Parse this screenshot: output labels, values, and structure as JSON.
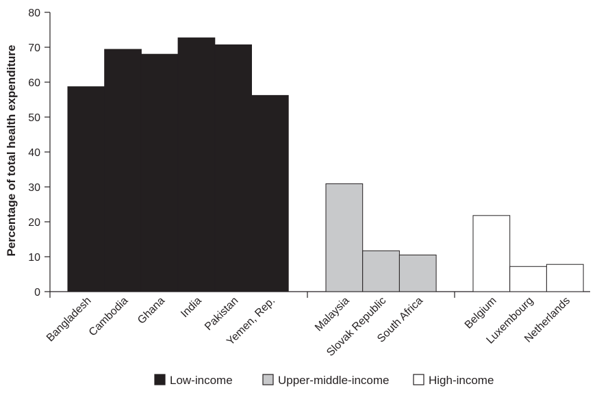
{
  "chart_data": {
    "type": "bar",
    "title": "",
    "xlabel": "",
    "ylabel": "Percentage of total health expenditure",
    "ylim": [
      0,
      80
    ],
    "yticks": [
      0,
      10,
      20,
      30,
      40,
      50,
      60,
      70,
      80
    ],
    "grid": false,
    "legend_position": "bottom",
    "groups": [
      {
        "name": "Low-income",
        "color": "#231f20",
        "categories": [
          "Bangladesh",
          "Cambodia",
          "Ghana",
          "India",
          "Pakistan",
          "Yemen, Rep."
        ],
        "values": [
          58.7,
          69.4,
          68.0,
          72.7,
          70.7,
          56.2
        ]
      },
      {
        "name": "Upper-middle-income",
        "color": "#c8c9cb",
        "categories": [
          "Malaysia",
          "Slovak Republic",
          "South Africa"
        ],
        "values": [
          30.9,
          11.7,
          10.5
        ]
      },
      {
        "name": "High-income",
        "color": "#ffffff",
        "categories": [
          "Belgium",
          "Luxembourg",
          "Netherlands"
        ],
        "values": [
          21.8,
          7.2,
          7.8
        ]
      }
    ]
  }
}
